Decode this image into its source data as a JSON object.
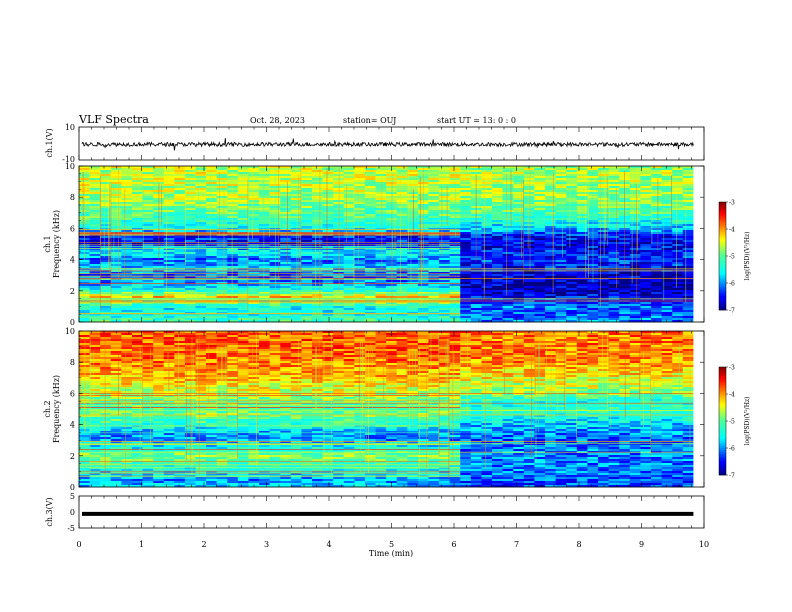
{
  "header": {
    "title": "VLF Spectra",
    "date": "Oct. 28, 2023",
    "station": "station= OUJ",
    "start": "start  UT =   13: 0  : 0"
  },
  "chart_data": [
    {
      "type": "line",
      "id": "ch1_waveform",
      "ylabel": "ch.1(V)",
      "ylim": [
        -10,
        10
      ],
      "yticks": [
        "10",
        "-10"
      ],
      "xlim": [
        0,
        10
      ],
      "data_extent_min": 9.83,
      "baseline_v": -0.5,
      "noise_amplitude_v": 1.2
    },
    {
      "type": "heatmap",
      "id": "ch1_spectrogram",
      "ylabel": "ch.1\nFrequency (kHz)",
      "ylim": [
        0,
        10
      ],
      "yticks": [
        "0",
        "2",
        "4",
        "6",
        "8",
        "10"
      ],
      "xlim": [
        0,
        10
      ],
      "data_extent_min": 9.83,
      "transition_min": 6.1,
      "colorbar": {
        "min": -7,
        "max": -3,
        "ticks": [
          "-3",
          "-4",
          "-5",
          "-6",
          "-7"
        ],
        "label": "log(PSD)(V²/Hz)"
      },
      "profile_before": [
        [
          0,
          -5.2
        ],
        [
          0.4,
          -5.4
        ],
        [
          0.9,
          -5.6
        ],
        [
          1.2,
          -5.0
        ],
        [
          1.6,
          -4.2
        ],
        [
          2.0,
          -5.3
        ],
        [
          2.5,
          -6.0
        ],
        [
          3.0,
          -6.2
        ],
        [
          3.5,
          -5.8
        ],
        [
          4.0,
          -6.1
        ],
        [
          4.5,
          -5.5
        ],
        [
          5.0,
          -6.5
        ],
        [
          5.5,
          -6.4
        ],
        [
          6.0,
          -5.5
        ],
        [
          7.0,
          -5.0
        ],
        [
          8.0,
          -4.7
        ],
        [
          9.0,
          -4.6
        ],
        [
          10.0,
          -4.6
        ]
      ],
      "profile_after": [
        [
          0,
          -6.0
        ],
        [
          0.5,
          -6.2
        ],
        [
          1.0,
          -6.1
        ],
        [
          2.0,
          -6.8
        ],
        [
          3.0,
          -6.7
        ],
        [
          4.0,
          -6.3
        ],
        [
          5.0,
          -6.6
        ],
        [
          5.5,
          -6.5
        ],
        [
          6.0,
          -5.8
        ],
        [
          7.0,
          -5.1
        ],
        [
          8.0,
          -4.8
        ],
        [
          9.0,
          -4.7
        ],
        [
          10.0,
          -4.7
        ]
      ]
    },
    {
      "type": "heatmap",
      "id": "ch2_spectrogram",
      "ylabel": "ch.2\nFrequency (kHz)",
      "ylim": [
        0,
        10
      ],
      "yticks": [
        "0",
        "2",
        "4",
        "6",
        "8",
        "10"
      ],
      "xlim": [
        0,
        10
      ],
      "data_extent_min": 9.83,
      "transition_min": 6.1,
      "colorbar": {
        "min": -7,
        "max": -3,
        "ticks": [
          "-3",
          "-4",
          "-5",
          "-6",
          "-7"
        ],
        "label": "log(PSD)(V²/Hz)"
      },
      "profile_before": [
        [
          0,
          -5.8
        ],
        [
          0.5,
          -6.0
        ],
        [
          1.0,
          -5.6
        ],
        [
          1.5,
          -5.2
        ],
        [
          2.0,
          -4.8
        ],
        [
          2.5,
          -5.5
        ],
        [
          3.0,
          -6.0
        ],
        [
          3.5,
          -5.9
        ],
        [
          4.0,
          -5.3
        ],
        [
          4.7,
          -4.9
        ],
        [
          5.0,
          -5.1
        ],
        [
          5.5,
          -5.0
        ],
        [
          6.0,
          -4.6
        ],
        [
          7.0,
          -4.2
        ],
        [
          8.0,
          -3.9
        ],
        [
          9.0,
          -3.8
        ],
        [
          10.0,
          -3.8
        ]
      ],
      "profile_after": [
        [
          0,
          -6.3
        ],
        [
          1.0,
          -6.1
        ],
        [
          2.0,
          -6.0
        ],
        [
          3.0,
          -6.2
        ],
        [
          4.0,
          -5.8
        ],
        [
          4.7,
          -5.3
        ],
        [
          5.5,
          -5.4
        ],
        [
          6.0,
          -4.8
        ],
        [
          7.0,
          -4.4
        ],
        [
          8.0,
          -4.0
        ],
        [
          9.0,
          -3.9
        ],
        [
          10.0,
          -3.9
        ]
      ]
    },
    {
      "type": "line",
      "id": "ch3_waveform",
      "ylabel": "ch.3(V)",
      "ylim": [
        -5,
        5
      ],
      "yticks": [
        "5",
        "0",
        "-5"
      ],
      "xlim": [
        0,
        10
      ],
      "data_extent_min": 9.83,
      "baseline_v": -0.6
    }
  ],
  "xaxis": {
    "label": "Time (min)",
    "ticks": [
      "0",
      "1",
      "2",
      "3",
      "4",
      "5",
      "6",
      "7",
      "8",
      "9",
      "10"
    ]
  }
}
